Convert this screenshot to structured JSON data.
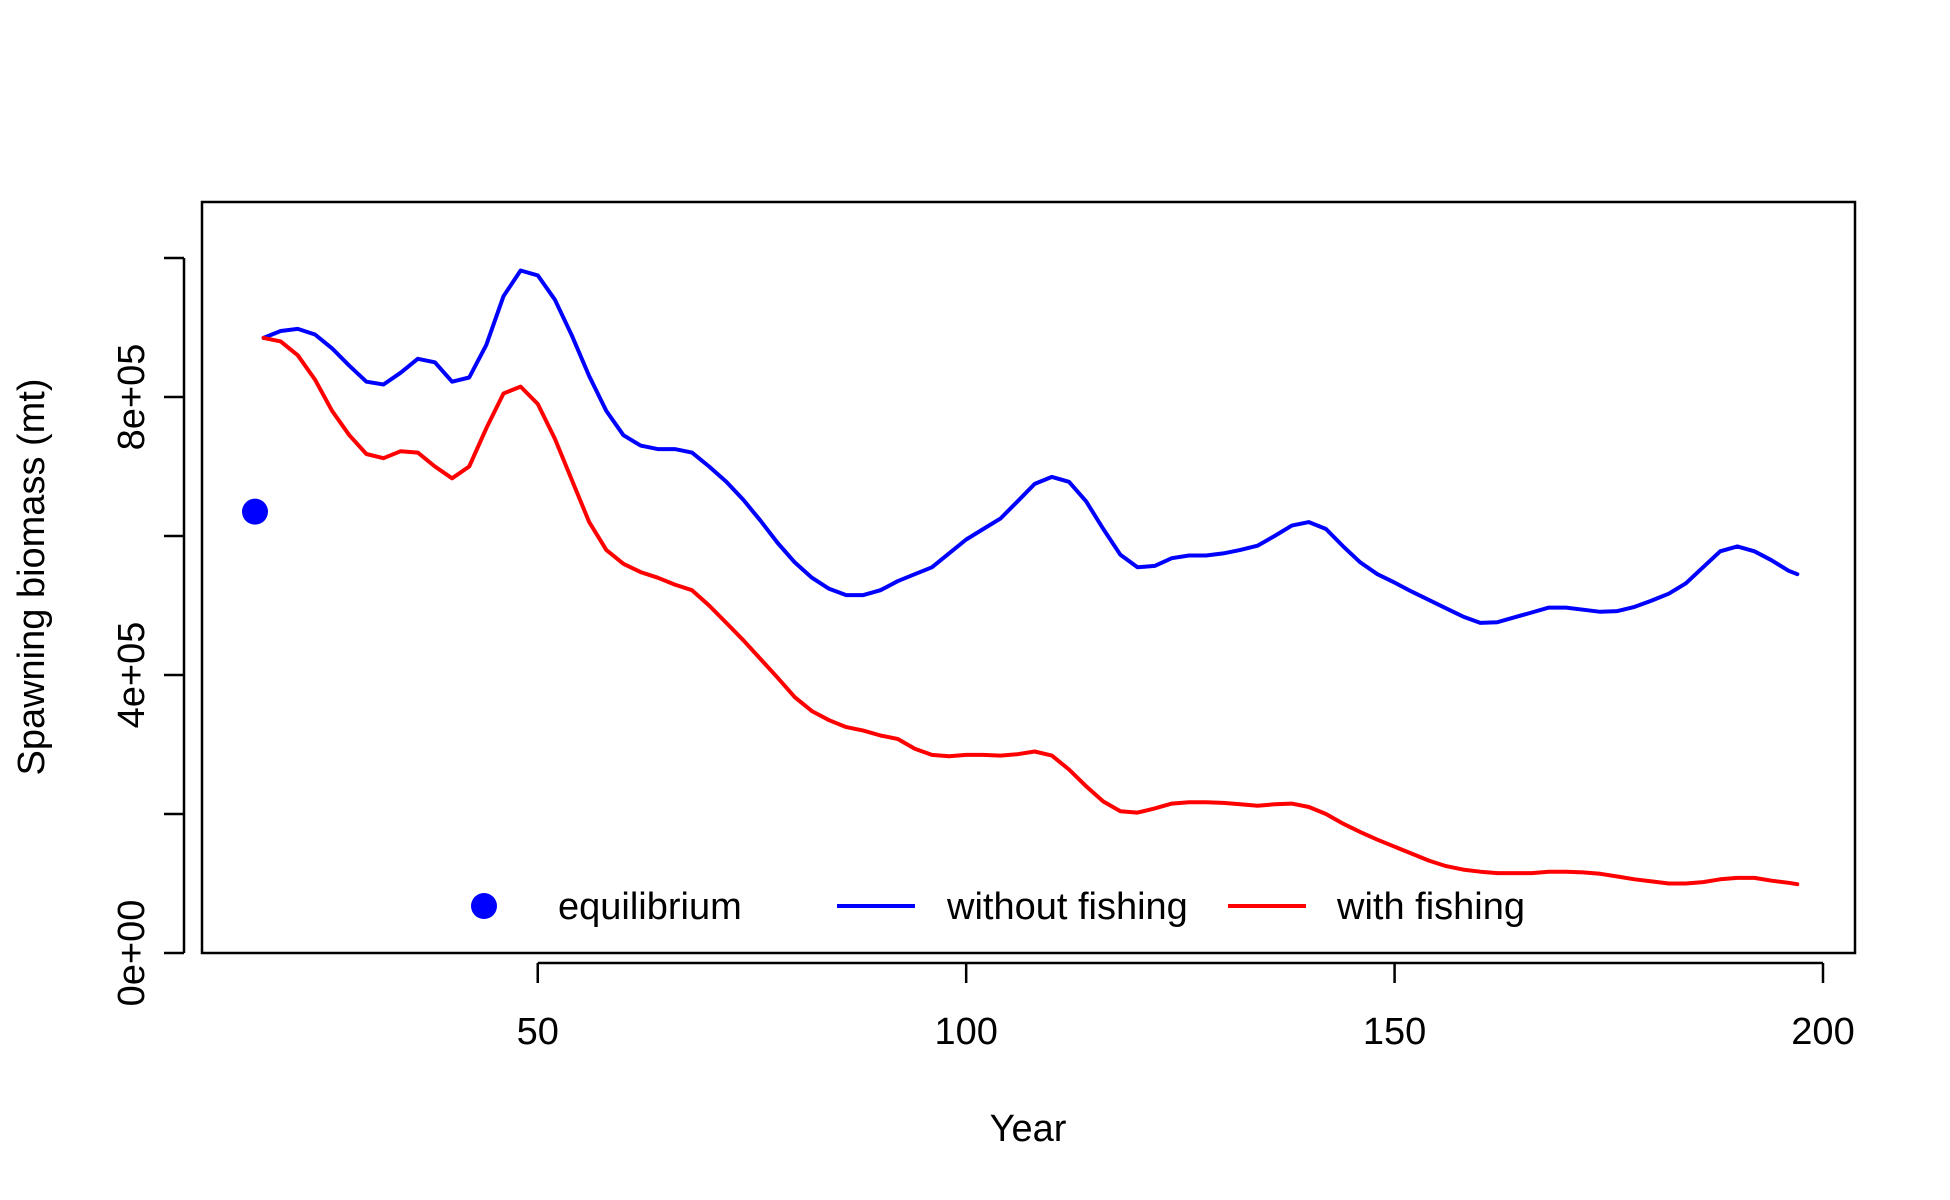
{
  "chart_data": {
    "type": "line",
    "title": "",
    "xlabel": "Year",
    "ylabel": "Spawning biomass (mt)",
    "xlim": [
      10,
      205
    ],
    "ylim": [
      0,
      1000000
    ],
    "x_ticks": [
      50,
      100,
      150,
      200
    ],
    "x_tick_labels": [
      "50",
      "100",
      "150",
      "200"
    ],
    "y_ticks": [
      0,
      200000,
      400000,
      600000,
      800000,
      1000000
    ],
    "y_tick_labels": [
      "0e+00",
      "",
      "4e+05",
      "",
      "8e+05",
      ""
    ],
    "grid": false,
    "legend_position": "bottom",
    "legend": [
      {
        "label": "equilibrium",
        "kind": "point",
        "color": "#0000ff"
      },
      {
        "label": "without fishing",
        "kind": "line",
        "color": "#0000ff"
      },
      {
        "label": "with fishing",
        "kind": "line",
        "color": "#ff0000"
      }
    ],
    "equilibrium": {
      "x": 17,
      "y": 635000,
      "color": "#0000ff"
    },
    "series": [
      {
        "name": "without fishing",
        "color": "#0000ff",
        "x": [
          18,
          20,
          22,
          24,
          26,
          28,
          30,
          32,
          34,
          36,
          38,
          40,
          42,
          44,
          46,
          48,
          50,
          52,
          54,
          56,
          58,
          60,
          62,
          64,
          66,
          68,
          70,
          72,
          74,
          76,
          78,
          80,
          82,
          84,
          86,
          88,
          90,
          92,
          94,
          96,
          98,
          100,
          102,
          104,
          106,
          108,
          110,
          112,
          114,
          116,
          118,
          120,
          122,
          124,
          126,
          128,
          130,
          132,
          134,
          136,
          138,
          140,
          142,
          144,
          146,
          148,
          150,
          152,
          154,
          156,
          158,
          160,
          162,
          164,
          166,
          168,
          170,
          172,
          174,
          176,
          178,
          180,
          182,
          184,
          186,
          188,
          190,
          192,
          194,
          196,
          197
        ],
        "values": [
          885000,
          895000,
          898000,
          890000,
          870000,
          845000,
          822000,
          818000,
          835000,
          855000,
          850000,
          822000,
          828000,
          875000,
          945000,
          982000,
          975000,
          940000,
          888000,
          830000,
          780000,
          745000,
          730000,
          725000,
          725000,
          720000,
          700000,
          678000,
          652000,
          622000,
          590000,
          562000,
          540000,
          524000,
          515000,
          515000,
          522000,
          535000,
          545000,
          555000,
          575000,
          595000,
          610000,
          625000,
          650000,
          675000,
          685000,
          678000,
          650000,
          610000,
          573000,
          555000,
          557000,
          568000,
          572000,
          572000,
          575000,
          580000,
          586000,
          600000,
          615000,
          620000,
          610000,
          585000,
          562000,
          545000,
          533000,
          520000,
          508000,
          496000,
          484000,
          475000,
          476000,
          483000,
          490000,
          497000,
          497000,
          494000,
          491000,
          492000,
          498000,
          507000,
          517000,
          532000,
          555000,
          578000,
          585000,
          578000,
          565000,
          550000,
          545000
        ]
      },
      {
        "name": "with fishing",
        "color": "#ff0000",
        "x": [
          18,
          20,
          22,
          24,
          26,
          28,
          30,
          32,
          34,
          36,
          38,
          40,
          42,
          44,
          46,
          48,
          50,
          52,
          54,
          56,
          58,
          60,
          62,
          64,
          66,
          68,
          70,
          72,
          74,
          76,
          78,
          80,
          82,
          84,
          86,
          88,
          90,
          92,
          94,
          96,
          98,
          100,
          102,
          104,
          106,
          108,
          110,
          112,
          114,
          116,
          118,
          120,
          122,
          124,
          126,
          128,
          130,
          132,
          134,
          136,
          138,
          140,
          142,
          144,
          146,
          148,
          150,
          152,
          154,
          156,
          158,
          160,
          162,
          164,
          166,
          168,
          170,
          172,
          174,
          176,
          178,
          180,
          182,
          184,
          186,
          188,
          190,
          192,
          194,
          196,
          197
        ],
        "values": [
          885000,
          880000,
          860000,
          825000,
          780000,
          745000,
          718000,
          712000,
          722000,
          720000,
          700000,
          683000,
          700000,
          755000,
          805000,
          815000,
          790000,
          740000,
          680000,
          620000,
          580000,
          560000,
          548000,
          540000,
          530000,
          522000,
          500000,
          475000,
          450000,
          423000,
          396000,
          368000,
          348000,
          335000,
          325000,
          320000,
          313000,
          308000,
          294000,
          285000,
          283000,
          285000,
          285000,
          284000,
          286000,
          290000,
          284000,
          264000,
          240000,
          218000,
          204000,
          202000,
          208000,
          215000,
          217000,
          217000,
          216000,
          214000,
          212000,
          214000,
          215000,
          210000,
          200000,
          186000,
          174000,
          163000,
          153000,
          143000,
          133000,
          125000,
          120000,
          117000,
          115000,
          115000,
          115000,
          117000,
          117000,
          116000,
          114000,
          110000,
          106000,
          103000,
          100000,
          100000,
          102000,
          106000,
          108000,
          108000,
          104000,
          101000,
          99000
        ]
      }
    ]
  }
}
